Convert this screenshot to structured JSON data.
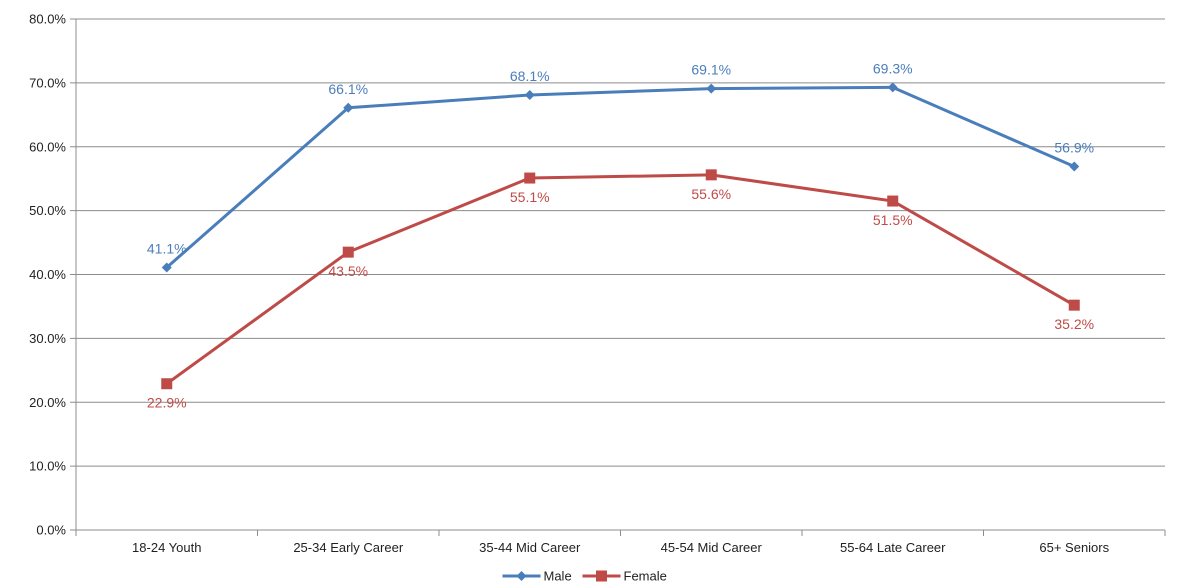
{
  "chart_data": {
    "type": "line",
    "categories": [
      "18-24 Youth",
      "25-34 Early Career",
      "35-44 Mid Career",
      "45-54 Mid Career",
      "55-64 Late Career",
      "65+ Seniors"
    ],
    "series": [
      {
        "name": "Male",
        "values": [
          41.1,
          66.1,
          68.1,
          69.1,
          69.3,
          56.9
        ],
        "labels": [
          "41.1%",
          "66.1%",
          "68.1%",
          "69.1%",
          "69.3%",
          "56.9%"
        ],
        "color": "#4a7ebb",
        "marker": "diamond",
        "label_position": "above"
      },
      {
        "name": "Female",
        "values": [
          22.9,
          43.5,
          55.1,
          55.6,
          51.5,
          35.2
        ],
        "labels": [
          "22.9%",
          "43.5%",
          "55.1%",
          "55.6%",
          "51.5%",
          "35.2%"
        ],
        "color": "#be4b48",
        "marker": "square",
        "label_position": "below"
      }
    ],
    "ylim": [
      0,
      80
    ],
    "yticks": [
      0,
      10,
      20,
      30,
      40,
      50,
      60,
      70,
      80
    ],
    "ytick_labels": [
      "0.0%",
      "10.0%",
      "20.0%",
      "30.0%",
      "40.0%",
      "50.0%",
      "60.0%",
      "70.0%",
      "80.0%"
    ],
    "grid": "horizontal",
    "legend_position": "bottom-center"
  }
}
